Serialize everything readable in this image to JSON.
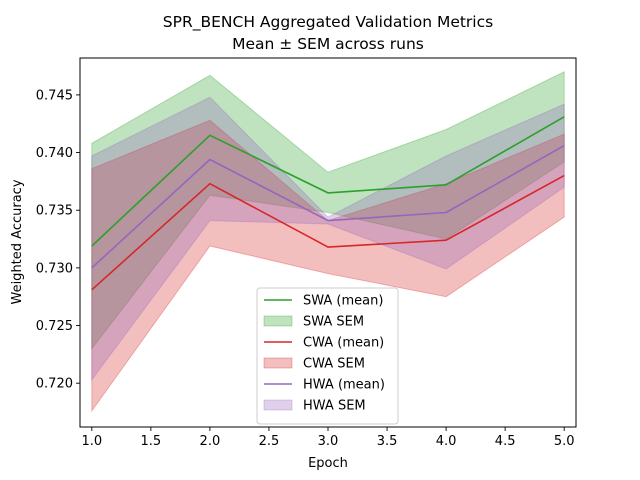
{
  "chart_data": {
    "type": "line",
    "title": "SPR_BENCH Aggregated Validation Metrics",
    "subtitle": "Mean ± SEM across runs",
    "xlabel": "Epoch",
    "ylabel": "Weighted Accuracy",
    "xlim": [
      0.9,
      5.1
    ],
    "ylim": [
      0.7162,
      0.7482
    ],
    "x": [
      1,
      2,
      3,
      4,
      5
    ],
    "xticks": [
      "1.0",
      "1.5",
      "2.0",
      "2.5",
      "3.0",
      "3.5",
      "4.0",
      "4.5",
      "5.0"
    ],
    "yticks": [
      "0.720",
      "0.725",
      "0.730",
      "0.735",
      "0.740",
      "0.745"
    ],
    "grid": false,
    "legend_position": "bottom-center",
    "series": [
      {
        "name": "SWA (mean)",
        "band_name": "SWA SEM",
        "color": "#2ca02c",
        "band_color": "#2ca02c",
        "values": [
          0.7319,
          0.7415,
          0.7365,
          0.7372,
          0.7431
        ],
        "lower": [
          0.723,
          0.7363,
          0.7348,
          0.7325,
          0.7392
        ],
        "upper": [
          0.7408,
          0.7467,
          0.7383,
          0.742,
          0.747
        ]
      },
      {
        "name": "CWA (mean)",
        "band_name": "CWA SEM",
        "color": "#d62728",
        "band_color": "#d62728",
        "values": [
          0.7281,
          0.7373,
          0.7318,
          0.7324,
          0.738
        ],
        "lower": [
          0.7176,
          0.7319,
          0.7295,
          0.7275,
          0.7344
        ],
        "upper": [
          0.7386,
          0.7428,
          0.7341,
          0.7373,
          0.7416
        ]
      },
      {
        "name": "HWA (mean)",
        "band_name": "HWA SEM",
        "color": "#9467bd",
        "band_color": "#9467bd",
        "values": [
          0.73,
          0.7394,
          0.7341,
          0.7348,
          0.7406
        ],
        "lower": [
          0.7203,
          0.7341,
          0.7338,
          0.7299,
          0.737
        ],
        "upper": [
          0.7397,
          0.7448,
          0.7344,
          0.7397,
          0.7442
        ]
      }
    ]
  }
}
